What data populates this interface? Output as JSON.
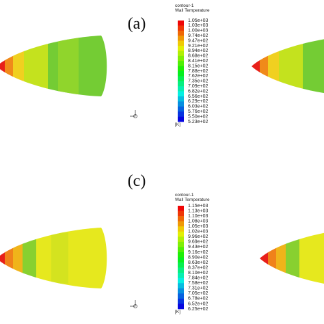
{
  "panels": [
    {
      "label": "(a)",
      "legend": {
        "title": "contour-1",
        "subtitle": "Wall Temperature",
        "unit": "[K]",
        "ticks": [
          "1.05e+03",
          "1.03e+03",
          "1.00e+03",
          "9.74e+02",
          "9.47e+02",
          "9.21e+02",
          "8.94e+02",
          "8.68e+02",
          "8.41e+02",
          "8.15e+02",
          "7.88e+02",
          "7.62e+02",
          "7.35e+02",
          "7.09e+02",
          "6.82e+02",
          "6.56e+02",
          "6.29e+02",
          "6.03e+02",
          "5.76e+02",
          "5.50e+02",
          "5.23e+02"
        ]
      }
    },
    {
      "label": "(c)",
      "legend": {
        "title": "contour-1",
        "subtitle": "Wall Temperature",
        "unit": "[K]",
        "ticks": [
          "1.15e+03",
          "1.13e+03",
          "1.10e+03",
          "1.08e+03",
          "1.05e+03",
          "1.02e+03",
          "9.96e+02",
          "9.69e+02",
          "9.43e+02",
          "9.16e+02",
          "8.90e+02",
          "8.63e+02",
          "8.37e+02",
          "8.10e+02",
          "7.84e+02",
          "7.58e+02",
          "7.31e+02",
          "7.05e+02",
          "6.78e+02",
          "6.52e+02",
          "6.25e+02"
        ]
      }
    }
  ]
}
